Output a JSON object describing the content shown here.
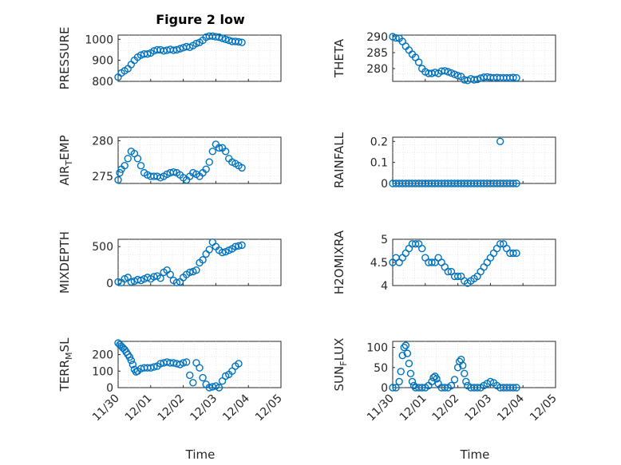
{
  "figure": {
    "title": "Figure 2 low",
    "xlabel": "Time"
  },
  "colors": {
    "marker": "#0072bd",
    "axis": "#262626",
    "grid": "#d9d9d9"
  },
  "chart_data": [
    {
      "type": "scatter",
      "id": "pressure",
      "ylabel": "PRESSURE",
      "xlim": [
        0,
        5
      ],
      "ylim": [
        800,
        1020
      ],
      "yticks": [
        800,
        900,
        1000
      ],
      "x": [
        0,
        0.1,
        0.2,
        0.3,
        0.4,
        0.5,
        0.6,
        0.7,
        0.8,
        0.9,
        1.0,
        1.1,
        1.2,
        1.3,
        1.4,
        1.5,
        1.6,
        1.7,
        1.8,
        1.9,
        2.0,
        2.1,
        2.2,
        2.3,
        2.4,
        2.5,
        2.6,
        2.7,
        2.8,
        2.9,
        3.0,
        3.1,
        3.2,
        3.3,
        3.4,
        3.5,
        3.6,
        3.7,
        3.8
      ],
      "y": [
        820,
        840,
        850,
        860,
        880,
        900,
        915,
        925,
        930,
        930,
        935,
        945,
        950,
        950,
        945,
        948,
        952,
        948,
        950,
        955,
        960,
        965,
        962,
        970,
        980,
        985,
        995,
        1010,
        1015,
        1015,
        1012,
        1010,
        1005,
        1000,
        995,
        990,
        990,
        988,
        985
      ]
    },
    {
      "type": "scatter",
      "id": "theta",
      "ylabel": "THETA",
      "xlim": [
        0,
        5
      ],
      "ylim": [
        276,
        290.5
      ],
      "yticks": [
        280,
        285,
        290
      ],
      "x": [
        0,
        0.1,
        0.2,
        0.3,
        0.4,
        0.5,
        0.6,
        0.7,
        0.8,
        0.9,
        1.0,
        1.1,
        1.2,
        1.3,
        1.4,
        1.5,
        1.6,
        1.7,
        1.8,
        1.9,
        2.0,
        2.1,
        2.2,
        2.3,
        2.4,
        2.5,
        2.6,
        2.7,
        2.8,
        2.9,
        3.0,
        3.1,
        3.2,
        3.3,
        3.4,
        3.5,
        3.6,
        3.7,
        3.8
      ],
      "y": [
        290,
        289.6,
        289.5,
        288.5,
        287,
        285.8,
        284.5,
        283.5,
        282,
        280,
        279,
        278.5,
        278.5,
        278.8,
        278.5,
        279.2,
        279.3,
        279,
        278.6,
        278.2,
        277.8,
        277.5,
        276.5,
        276.3,
        276.8,
        276.5,
        276.6,
        277,
        277.3,
        277.4,
        277.2,
        277.1,
        277.2,
        277.1,
        277.1,
        277.1,
        277.1,
        277.2,
        277.1
      ]
    },
    {
      "type": "scatter",
      "id": "air-temp",
      "ylabel": "AIR_TEMP",
      "xlim": [
        0,
        5
      ],
      "ylim": [
        274,
        280.5
      ],
      "yticks": [
        275,
        280
      ],
      "x": [
        0,
        0.05,
        0.1,
        0.2,
        0.3,
        0.4,
        0.5,
        0.6,
        0.7,
        0.8,
        0.9,
        1.0,
        1.1,
        1.2,
        1.3,
        1.4,
        1.5,
        1.6,
        1.7,
        1.8,
        1.9,
        2.0,
        2.1,
        2.2,
        2.3,
        2.4,
        2.5,
        2.6,
        2.7,
        2.8,
        2.9,
        3.0,
        3.1,
        3.2,
        3.3,
        3.4,
        3.5,
        3.6,
        3.7,
        3.8
      ],
      "y": [
        274.5,
        275.5,
        276,
        276.5,
        277.5,
        278.5,
        278.2,
        277.5,
        276.5,
        275.5,
        275.2,
        275,
        275,
        275,
        274.8,
        275,
        275.3,
        275.5,
        275.6,
        275.5,
        275.2,
        274.8,
        274.5,
        275,
        275.5,
        275.3,
        275,
        275.5,
        276,
        277,
        278.5,
        279.5,
        279,
        279,
        278.5,
        277.5,
        277,
        276.8,
        276.5,
        276.2
      ]
    },
    {
      "type": "scatter",
      "id": "rainfall",
      "ylabel": "RAINFALL",
      "xlim": [
        0,
        5
      ],
      "ylim": [
        0,
        0.22
      ],
      "yticks": [
        0,
        0.1,
        0.2
      ],
      "x": [
        0,
        0.1,
        0.2,
        0.3,
        0.4,
        0.5,
        0.6,
        0.7,
        0.8,
        0.9,
        1.0,
        1.1,
        1.2,
        1.3,
        1.4,
        1.5,
        1.6,
        1.7,
        1.8,
        1.9,
        2.0,
        2.1,
        2.2,
        2.3,
        2.4,
        2.5,
        2.6,
        2.7,
        2.8,
        2.9,
        3.0,
        3.1,
        3.2,
        3.3,
        3.4,
        3.5,
        3.6,
        3.7,
        3.8,
        3.3
      ],
      "y": [
        0,
        0,
        0,
        0,
        0,
        0,
        0,
        0,
        0,
        0,
        0,
        0,
        0,
        0,
        0,
        0,
        0,
        0,
        0,
        0,
        0,
        0,
        0,
        0,
        0,
        0,
        0,
        0,
        0,
        0,
        0,
        0,
        0,
        0,
        0,
        0,
        0,
        0,
        0,
        0.2
      ]
    },
    {
      "type": "scatter",
      "id": "mixdepth",
      "ylabel": "MIXDEPTH",
      "xlim": [
        0,
        5
      ],
      "ylim": [
        -30,
        600
      ],
      "yticks": [
        0,
        500
      ],
      "x": [
        0,
        0.1,
        0.2,
        0.3,
        0.4,
        0.5,
        0.6,
        0.7,
        0.8,
        0.9,
        1.0,
        1.1,
        1.2,
        1.3,
        1.4,
        1.5,
        1.6,
        1.7,
        1.8,
        1.9,
        2.0,
        2.1,
        2.2,
        2.3,
        2.4,
        2.5,
        2.6,
        2.7,
        2.8,
        2.9,
        3.0,
        3.1,
        3.2,
        3.3,
        3.4,
        3.5,
        3.6,
        3.7,
        3.8
      ],
      "y": [
        20,
        10,
        60,
        80,
        20,
        30,
        50,
        40,
        60,
        80,
        60,
        90,
        100,
        70,
        150,
        180,
        120,
        40,
        10,
        20,
        80,
        120,
        150,
        160,
        180,
        280,
        320,
        400,
        460,
        560,
        500,
        450,
        420,
        430,
        450,
        470,
        500,
        510,
        520
      ]
    },
    {
      "type": "scatter",
      "id": "h2omixra",
      "ylabel": "H2OMIXRA",
      "xlim": [
        0,
        5
      ],
      "ylim": [
        4,
        5
      ],
      "yticks": [
        4,
        4.5,
        5
      ],
      "x": [
        0,
        0.1,
        0.2,
        0.3,
        0.4,
        0.5,
        0.6,
        0.7,
        0.8,
        0.9,
        1.0,
        1.1,
        1.2,
        1.3,
        1.4,
        1.5,
        1.6,
        1.7,
        1.8,
        1.9,
        2.0,
        2.1,
        2.2,
        2.3,
        2.4,
        2.5,
        2.6,
        2.7,
        2.8,
        2.9,
        3.0,
        3.1,
        3.2,
        3.3,
        3.4,
        3.5,
        3.6,
        3.7,
        3.8
      ],
      "y": [
        4.5,
        4.6,
        4.5,
        4.6,
        4.7,
        4.8,
        4.9,
        4.9,
        4.9,
        4.8,
        4.6,
        4.5,
        4.5,
        4.5,
        4.6,
        4.5,
        4.4,
        4.3,
        4.3,
        4.2,
        4.2,
        4.2,
        4.1,
        4.05,
        4.1,
        4.15,
        4.2,
        4.3,
        4.4,
        4.5,
        4.6,
        4.7,
        4.8,
        4.9,
        4.9,
        4.8,
        4.7,
        4.7,
        4.7
      ]
    },
    {
      "type": "scatter",
      "id": "terr-msl",
      "ylabel": "TERR_MSL",
      "xlim": [
        0,
        5
      ],
      "ylim": [
        0,
        280
      ],
      "yticks": [
        0,
        100,
        200
      ],
      "x": [
        0,
        0.05,
        0.1,
        0.15,
        0.2,
        0.25,
        0.3,
        0.35,
        0.4,
        0.45,
        0.5,
        0.55,
        0.6,
        0.7,
        0.8,
        0.9,
        1.0,
        1.1,
        1.2,
        1.3,
        1.4,
        1.5,
        1.6,
        1.7,
        1.8,
        1.9,
        2.0,
        2.1,
        2.2,
        2.3,
        2.4,
        2.5,
        2.6,
        2.7,
        2.8,
        2.9,
        3.0,
        3.1,
        3.2,
        3.3,
        3.4,
        3.5,
        3.6,
        3.7
      ],
      "y": [
        270,
        260,
        250,
        240,
        230,
        215,
        200,
        185,
        165,
        140,
        110,
        95,
        100,
        115,
        120,
        120,
        120,
        125,
        130,
        145,
        150,
        155,
        150,
        150,
        145,
        140,
        150,
        155,
        75,
        30,
        150,
        120,
        60,
        20,
        0,
        5,
        10,
        0,
        40,
        70,
        80,
        100,
        130,
        145
      ]
    },
    {
      "type": "scatter",
      "id": "sun-flux",
      "ylabel": "SUN_FLUX",
      "xlim": [
        0,
        5
      ],
      "ylim": [
        0,
        115
      ],
      "yticks": [
        0,
        50,
        100
      ],
      "x": [
        0,
        0.1,
        0.2,
        0.25,
        0.3,
        0.35,
        0.4,
        0.45,
        0.5,
        0.55,
        0.6,
        0.65,
        0.7,
        0.8,
        0.9,
        1.0,
        1.1,
        1.2,
        1.25,
        1.3,
        1.35,
        1.4,
        1.5,
        1.6,
        1.7,
        1.8,
        1.9,
        2.0,
        2.05,
        2.1,
        2.15,
        2.2,
        2.25,
        2.3,
        2.4,
        2.5,
        2.6,
        2.7,
        2.8,
        2.9,
        3.0,
        3.1,
        3.2,
        3.3,
        3.4,
        3.5,
        3.6,
        3.7,
        3.8
      ],
      "y": [
        0,
        0,
        15,
        40,
        80,
        100,
        105,
        85,
        60,
        35,
        15,
        5,
        0,
        0,
        0,
        0,
        5,
        15,
        25,
        28,
        22,
        10,
        0,
        0,
        0,
        5,
        20,
        50,
        65,
        70,
        55,
        35,
        15,
        5,
        0,
        0,
        0,
        0,
        5,
        10,
        15,
        12,
        5,
        0,
        0,
        0,
        0,
        0,
        0
      ]
    }
  ],
  "xticklabels": [
    "11/30",
    "12/01",
    "12/02",
    "12/03",
    "12/04",
    "12/05"
  ]
}
